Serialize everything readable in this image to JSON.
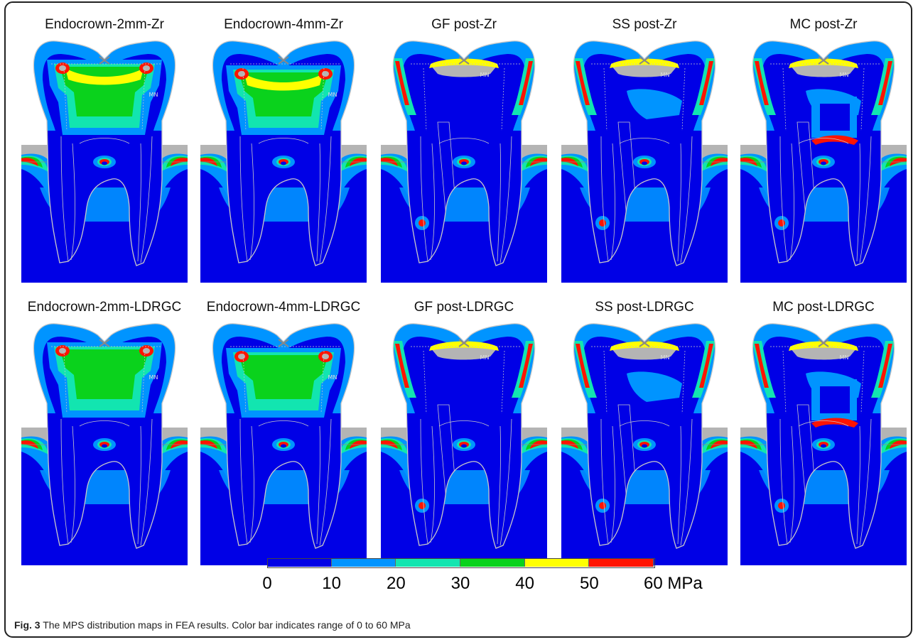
{
  "figure": {
    "rows": [
      {
        "panels": [
          {
            "title": "Endocrown-2mm-Zr",
            "type": "endocrown",
            "variant": "2mm",
            "material": "Zr"
          },
          {
            "title": "Endocrown-4mm-Zr",
            "type": "endocrown",
            "variant": "4mm",
            "material": "Zr"
          },
          {
            "title": "GF post-Zr",
            "type": "post",
            "variant": "GF",
            "material": "Zr"
          },
          {
            "title": "SS post-Zr",
            "type": "post",
            "variant": "SS",
            "material": "Zr"
          },
          {
            "title": "MC post-Zr",
            "type": "post",
            "variant": "MC",
            "material": "Zr"
          }
        ]
      },
      {
        "panels": [
          {
            "title": "Endocrown-2mm-LDRGC",
            "type": "endocrown",
            "variant": "2mm",
            "material": "LDRGC"
          },
          {
            "title": "Endocrown-4mm-LDRGC",
            "type": "endocrown",
            "variant": "4mm",
            "material": "LDRGC"
          },
          {
            "title": "GF post-LDRGC",
            "type": "post",
            "variant": "GF",
            "material": "LDRGC"
          },
          {
            "title": "SS post-LDRGC",
            "type": "post",
            "variant": "SS",
            "material": "LDRGC"
          },
          {
            "title": "MC post-LDRGC",
            "type": "post",
            "variant": "MC",
            "material": "LDRGC"
          }
        ]
      }
    ],
    "mx_label": "MX",
    "mn_label": "MN",
    "colors": {
      "background": "#0000e6",
      "outline": "#c8c8c8",
      "max_gray": "#b4b4b4"
    },
    "colorbar": {
      "colors": [
        "#0000e6",
        "#0094ff",
        "#12e5b0",
        "#0ad21c",
        "#ffff00",
        "#ff1400"
      ],
      "ticks": [
        "0",
        "10",
        "20",
        "30",
        "40",
        "50",
        "60 MPa"
      ]
    },
    "caption": {
      "label": "Fig. 3",
      "text": " The MPS distribution maps in FEA results. Color bar indicates range of 0 to 60 MPa"
    }
  }
}
